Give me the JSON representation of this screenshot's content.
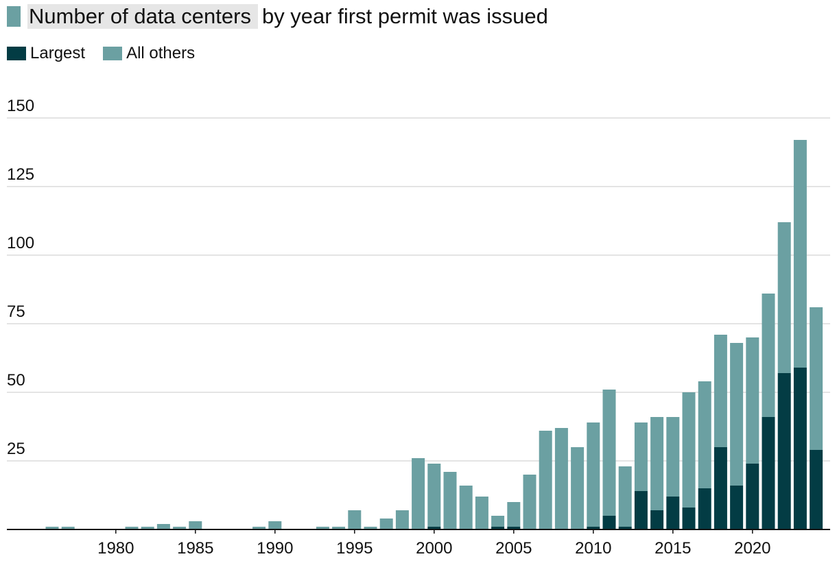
{
  "chart_data": {
    "type": "bar",
    "stacked": true,
    "title_highlight": "Number of data centers",
    "title_rest": "by year first permit was issued",
    "legend_position": "top-left",
    "series": [
      {
        "name": "Largest",
        "color": "#033c44",
        "values": [
          0,
          0,
          0,
          0,
          0,
          0,
          0,
          0,
          0,
          0,
          0,
          0,
          0,
          0,
          0,
          0,
          0,
          0,
          0,
          0,
          0,
          0,
          0,
          0,
          1,
          0,
          0,
          0,
          1,
          1,
          0,
          0,
          0,
          0,
          1,
          5,
          1,
          14,
          7,
          12,
          8,
          15,
          30,
          16,
          24,
          41,
          57,
          59,
          29
        ]
      },
      {
        "name": "All others",
        "color": "#6ba0a2",
        "values": [
          1,
          1,
          0,
          0,
          0,
          1,
          1,
          2,
          1,
          3,
          0,
          0,
          0,
          1,
          3,
          0,
          0,
          1,
          1,
          7,
          1,
          4,
          7,
          26,
          23,
          21,
          16,
          12,
          4,
          9,
          20,
          36,
          37,
          30,
          38,
          46,
          22,
          25,
          34,
          29,
          42,
          39,
          41,
          52,
          46,
          45,
          55,
          83,
          52
        ]
      }
    ],
    "categories": [
      1976,
      1977,
      1978,
      1979,
      1980,
      1981,
      1982,
      1983,
      1984,
      1985,
      1986,
      1987,
      1988,
      1989,
      1990,
      1991,
      1992,
      1993,
      1994,
      1995,
      1996,
      1997,
      1998,
      1999,
      2000,
      2001,
      2002,
      2003,
      2004,
      2005,
      2006,
      2007,
      2008,
      2009,
      2010,
      2011,
      2012,
      2013,
      2014,
      2015,
      2016,
      2017,
      2018,
      2019,
      2020,
      2021,
      2022,
      2023,
      2024
    ],
    "x_tick_labels": [
      "1980",
      "1985",
      "1990",
      "1995",
      "2000",
      "2005",
      "2010",
      "2015",
      "2020"
    ],
    "y_ticks": [
      25,
      50,
      75,
      100,
      125,
      150
    ],
    "ylim": [
      0,
      150
    ],
    "grid": true
  }
}
